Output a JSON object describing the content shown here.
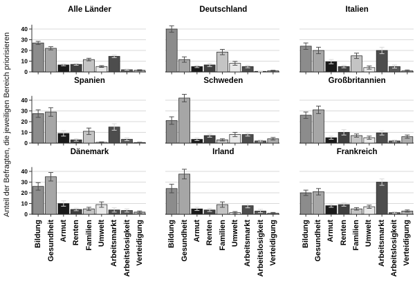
{
  "figure": {
    "background": "#ffffff",
    "ylabel": "Anteil der Befragten, die jeweiligen Bereich priorisieren"
  },
  "chart_data": {
    "type": "bar",
    "layout": "3x3 small multiples with 95% CI error bars",
    "grid": true,
    "legend": "none",
    "ylabel": "Anteil der Befragten, die jeweiligen Bereich priorisieren",
    "ylim": [
      0,
      46
    ],
    "yticks": [
      0,
      10,
      20,
      30,
      40
    ],
    "categories": [
      "Bildung",
      "Gesundheit",
      "Armut",
      "Renten",
      "Familien",
      "Umwelt",
      "Arbeitsmarkt",
      "Arbeitslosigkeit",
      "Verteidigung"
    ],
    "bar_colors": [
      "#8c8c8c",
      "#a6a6a6",
      "#1a1a1a",
      "#404040",
      "#c4c4c4",
      "#e8e8e8",
      "#4d4d4d",
      "#595959",
      "#adadad"
    ],
    "bar_outline": "#262626",
    "grid_color": "#d9d9d9",
    "axis_color": "#333333",
    "error_color_on_light": "#4d4d4d",
    "error_color_on_dark": "#d9d9d9",
    "panels": [
      {
        "title": "Alle Länder",
        "values": [
          27,
          22,
          6.5,
          7,
          11.5,
          5,
          14.5,
          2,
          1.5
        ],
        "errors": [
          1.5,
          1.5,
          0.8,
          0.8,
          1.2,
          0.8,
          1.2,
          0.5,
          0.5
        ]
      },
      {
        "title": "Deutschland",
        "values": [
          40,
          11.5,
          5,
          6.5,
          18.5,
          8,
          5,
          0.5,
          1
        ],
        "errors": [
          3,
          2.5,
          1,
          1.5,
          2.5,
          1.8,
          1.2,
          0.3,
          0.5
        ]
      },
      {
        "title": "Italien",
        "values": [
          24,
          20,
          9.5,
          5,
          15,
          4,
          20,
          5,
          1
        ],
        "errors": [
          3,
          3,
          2,
          1.2,
          2.5,
          1.5,
          3,
          1.5,
          0.8
        ]
      },
      {
        "title": "Spanien",
        "values": [
          27.5,
          29,
          9,
          3,
          11,
          0.7,
          15,
          3.5,
          0.5
        ],
        "errors": [
          3.5,
          4,
          2.5,
          1.2,
          3,
          0.4,
          3,
          1.3,
          0.3
        ]
      },
      {
        "title": "Schweden",
        "values": [
          21,
          42,
          3.5,
          7,
          3,
          8,
          8,
          2,
          4
        ],
        "errors": [
          3.5,
          3.5,
          1.2,
          1.5,
          1,
          2,
          1.5,
          0.8,
          1.2
        ]
      },
      {
        "title": "Großbritannien",
        "values": [
          26,
          31,
          5,
          10,
          7,
          5,
          9.5,
          2,
          6
        ],
        "errors": [
          3,
          3.5,
          1.5,
          2.5,
          1.5,
          1.5,
          2,
          0.8,
          1.5
        ]
      },
      {
        "title": "Dänemark",
        "values": [
          26,
          35,
          10,
          4.5,
          5,
          9,
          4,
          3.5,
          2
        ],
        "errors": [
          3.5,
          4,
          2.5,
          1.2,
          1.5,
          2.5,
          2,
          1.5,
          1
        ]
      },
      {
        "title": "Irland",
        "values": [
          24,
          37.5,
          5,
          4,
          9,
          1.5,
          8,
          3,
          1
        ],
        "errors": [
          4,
          4.5,
          1.5,
          1.5,
          2.5,
          1,
          2,
          1.5,
          0.7
        ]
      },
      {
        "title": "Frankreich",
        "values": [
          20,
          21,
          8,
          9,
          5,
          7,
          30,
          1.5,
          3
        ],
        "errors": [
          2.5,
          3,
          1.5,
          1.5,
          1.2,
          1.5,
          3,
          0.7,
          1
        ]
      }
    ]
  }
}
